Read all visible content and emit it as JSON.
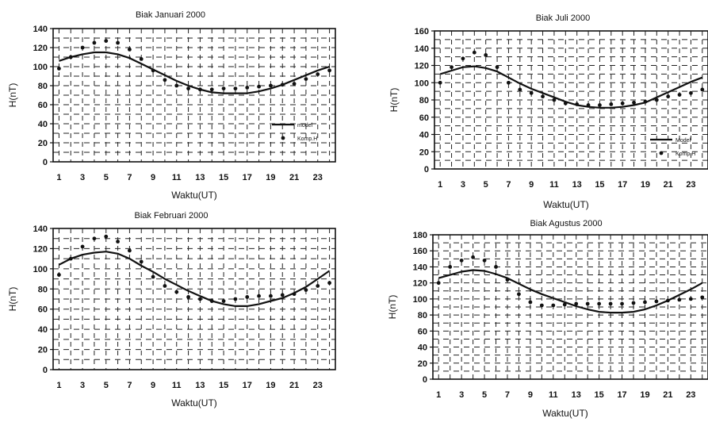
{
  "colors": {
    "ink": "#111111",
    "grid": "#222222",
    "background": "#ffffff"
  },
  "chart_data": [
    {
      "type": "line",
      "title": "Biak Januari 2000",
      "xlabel": "Waktu(UT)",
      "ylabel": "H(nT)",
      "ylim": [
        0,
        140
      ],
      "yticks": [
        0,
        20,
        40,
        60,
        80,
        100,
        120,
        140
      ],
      "xticks": [
        1,
        3,
        5,
        7,
        9,
        11,
        13,
        15,
        17,
        19,
        21,
        23
      ],
      "grid": true,
      "legend_position": "right",
      "series": [
        {
          "name": "model",
          "style": "line",
          "x": [
            1,
            2,
            3,
            4,
            5,
            6,
            7,
            8,
            9,
            10,
            11,
            12,
            13,
            14,
            15,
            16,
            17,
            18,
            19,
            20,
            21,
            22,
            23,
            24
          ],
          "values": [
            106,
            110,
            113,
            115,
            115,
            113,
            109,
            103,
            97,
            91,
            85,
            80,
            76,
            73,
            72,
            72,
            72,
            74,
            77,
            81,
            86,
            91,
            96,
            100
          ]
        },
        {
          "name": "Komp.H",
          "style": "dots",
          "x": [
            1,
            2,
            3,
            4,
            5,
            6,
            7,
            8,
            9,
            10,
            11,
            12,
            13,
            14,
            15,
            16,
            17,
            18,
            19,
            20,
            21,
            22,
            23,
            24
          ],
          "values": [
            98,
            110,
            120,
            125,
            127,
            125,
            118,
            108,
            96,
            86,
            80,
            77,
            76,
            76,
            77,
            77,
            78,
            79,
            80,
            81,
            82,
            87,
            92,
            96
          ]
        }
      ]
    },
    {
      "type": "line",
      "title": "Biak Juli 2000",
      "xlabel": "Waktu(UT)",
      "ylabel": "H(nT)",
      "ylim": [
        0,
        160
      ],
      "yticks": [
        0,
        20,
        40,
        60,
        80,
        100,
        120,
        140,
        160
      ],
      "xticks": [
        1,
        3,
        5,
        7,
        9,
        11,
        13,
        15,
        17,
        19,
        21,
        23
      ],
      "grid": true,
      "legend_position": "right",
      "series": [
        {
          "name": "Model",
          "style": "line",
          "x": [
            1,
            2,
            3,
            4,
            5,
            6,
            7,
            8,
            9,
            10,
            11,
            12,
            13,
            14,
            15,
            16,
            17,
            18,
            19,
            20,
            21,
            22,
            23,
            24
          ],
          "values": [
            110,
            114,
            118,
            119,
            117,
            113,
            106,
            99,
            93,
            88,
            83,
            78,
            74,
            72,
            71,
            71,
            72,
            74,
            77,
            83,
            89,
            95,
            101,
            106
          ]
        },
        {
          "name": "Komp.H",
          "style": "dots",
          "x": [
            1,
            2,
            3,
            4,
            5,
            6,
            7,
            8,
            9,
            10,
            11,
            12,
            13,
            14,
            15,
            16,
            17,
            18,
            19,
            20,
            21,
            22,
            23,
            24
          ],
          "values": [
            100,
            118,
            128,
            135,
            132,
            118,
            100,
            92,
            88,
            84,
            80,
            76,
            75,
            74,
            74,
            75,
            76,
            77,
            78,
            80,
            84,
            86,
            88,
            92
          ]
        }
      ]
    },
    {
      "type": "line",
      "title": "Biak Februari 2000",
      "xlabel": "Waktu(UT)",
      "ylabel": "H(nT)",
      "ylim": [
        0,
        140
      ],
      "yticks": [
        0,
        20,
        40,
        60,
        80,
        100,
        120,
        140
      ],
      "xticks": [
        1,
        3,
        5,
        7,
        9,
        11,
        13,
        15,
        17,
        19,
        21,
        23
      ],
      "grid": true,
      "legend_position": "right",
      "series": [
        {
          "name": "model",
          "style": "line",
          "x": [
            1,
            2,
            3,
            4,
            5,
            6,
            7,
            8,
            9,
            10,
            11,
            12,
            13,
            14,
            15,
            16,
            17,
            18,
            19,
            20,
            21,
            22,
            23,
            24
          ],
          "values": [
            104,
            110,
            114,
            116,
            117,
            115,
            110,
            103,
            97,
            90,
            84,
            78,
            73,
            68,
            65,
            63,
            63,
            65,
            68,
            71,
            76,
            82,
            90,
            98
          ]
        },
        {
          "name": "Komp.H",
          "style": "dots",
          "x": [
            1,
            2,
            3,
            4,
            5,
            6,
            7,
            8,
            9,
            10,
            11,
            12,
            13,
            14,
            15,
            16,
            17,
            18,
            19,
            20,
            21,
            22,
            23,
            24
          ],
          "values": [
            94,
            110,
            122,
            130,
            132,
            127,
            118,
            107,
            92,
            83,
            77,
            72,
            70,
            68,
            68,
            70,
            72,
            73,
            73,
            74,
            75,
            79,
            83,
            86
          ]
        }
      ]
    },
    {
      "type": "line",
      "title": "Biak Agustus 2000",
      "xlabel": "Waktu(UT)",
      "ylabel": "H(nT)",
      "ylim": [
        0,
        180
      ],
      "yticks": [
        0,
        20,
        40,
        60,
        80,
        100,
        120,
        140,
        160,
        180
      ],
      "xticks": [
        1,
        3,
        5,
        7,
        9,
        11,
        13,
        15,
        17,
        19,
        21,
        23
      ],
      "grid": true,
      "legend_position": "right",
      "series": [
        {
          "name": "Model",
          "style": "line",
          "x": [
            1,
            2,
            3,
            4,
            5,
            6,
            7,
            8,
            9,
            10,
            11,
            12,
            13,
            14,
            15,
            16,
            17,
            18,
            19,
            20,
            21,
            22,
            23,
            24
          ],
          "values": [
            126,
            130,
            134,
            136,
            135,
            131,
            126,
            119,
            112,
            106,
            101,
            96,
            91,
            87,
            84,
            83,
            83,
            84,
            87,
            92,
            98,
            105,
            112,
            120
          ]
        },
        {
          "name": "Komp.H",
          "style": "dots",
          "x": [
            1,
            2,
            3,
            4,
            5,
            6,
            7,
            8,
            9,
            10,
            11,
            12,
            13,
            14,
            15,
            16,
            17,
            18,
            19,
            20,
            21,
            22,
            23,
            24
          ],
          "values": [
            120,
            140,
            148,
            152,
            148,
            140,
            124,
            106,
            96,
            92,
            92,
            93,
            94,
            94,
            94,
            94,
            94,
            95,
            96,
            97,
            98,
            99,
            100,
            102
          ]
        }
      ]
    }
  ]
}
